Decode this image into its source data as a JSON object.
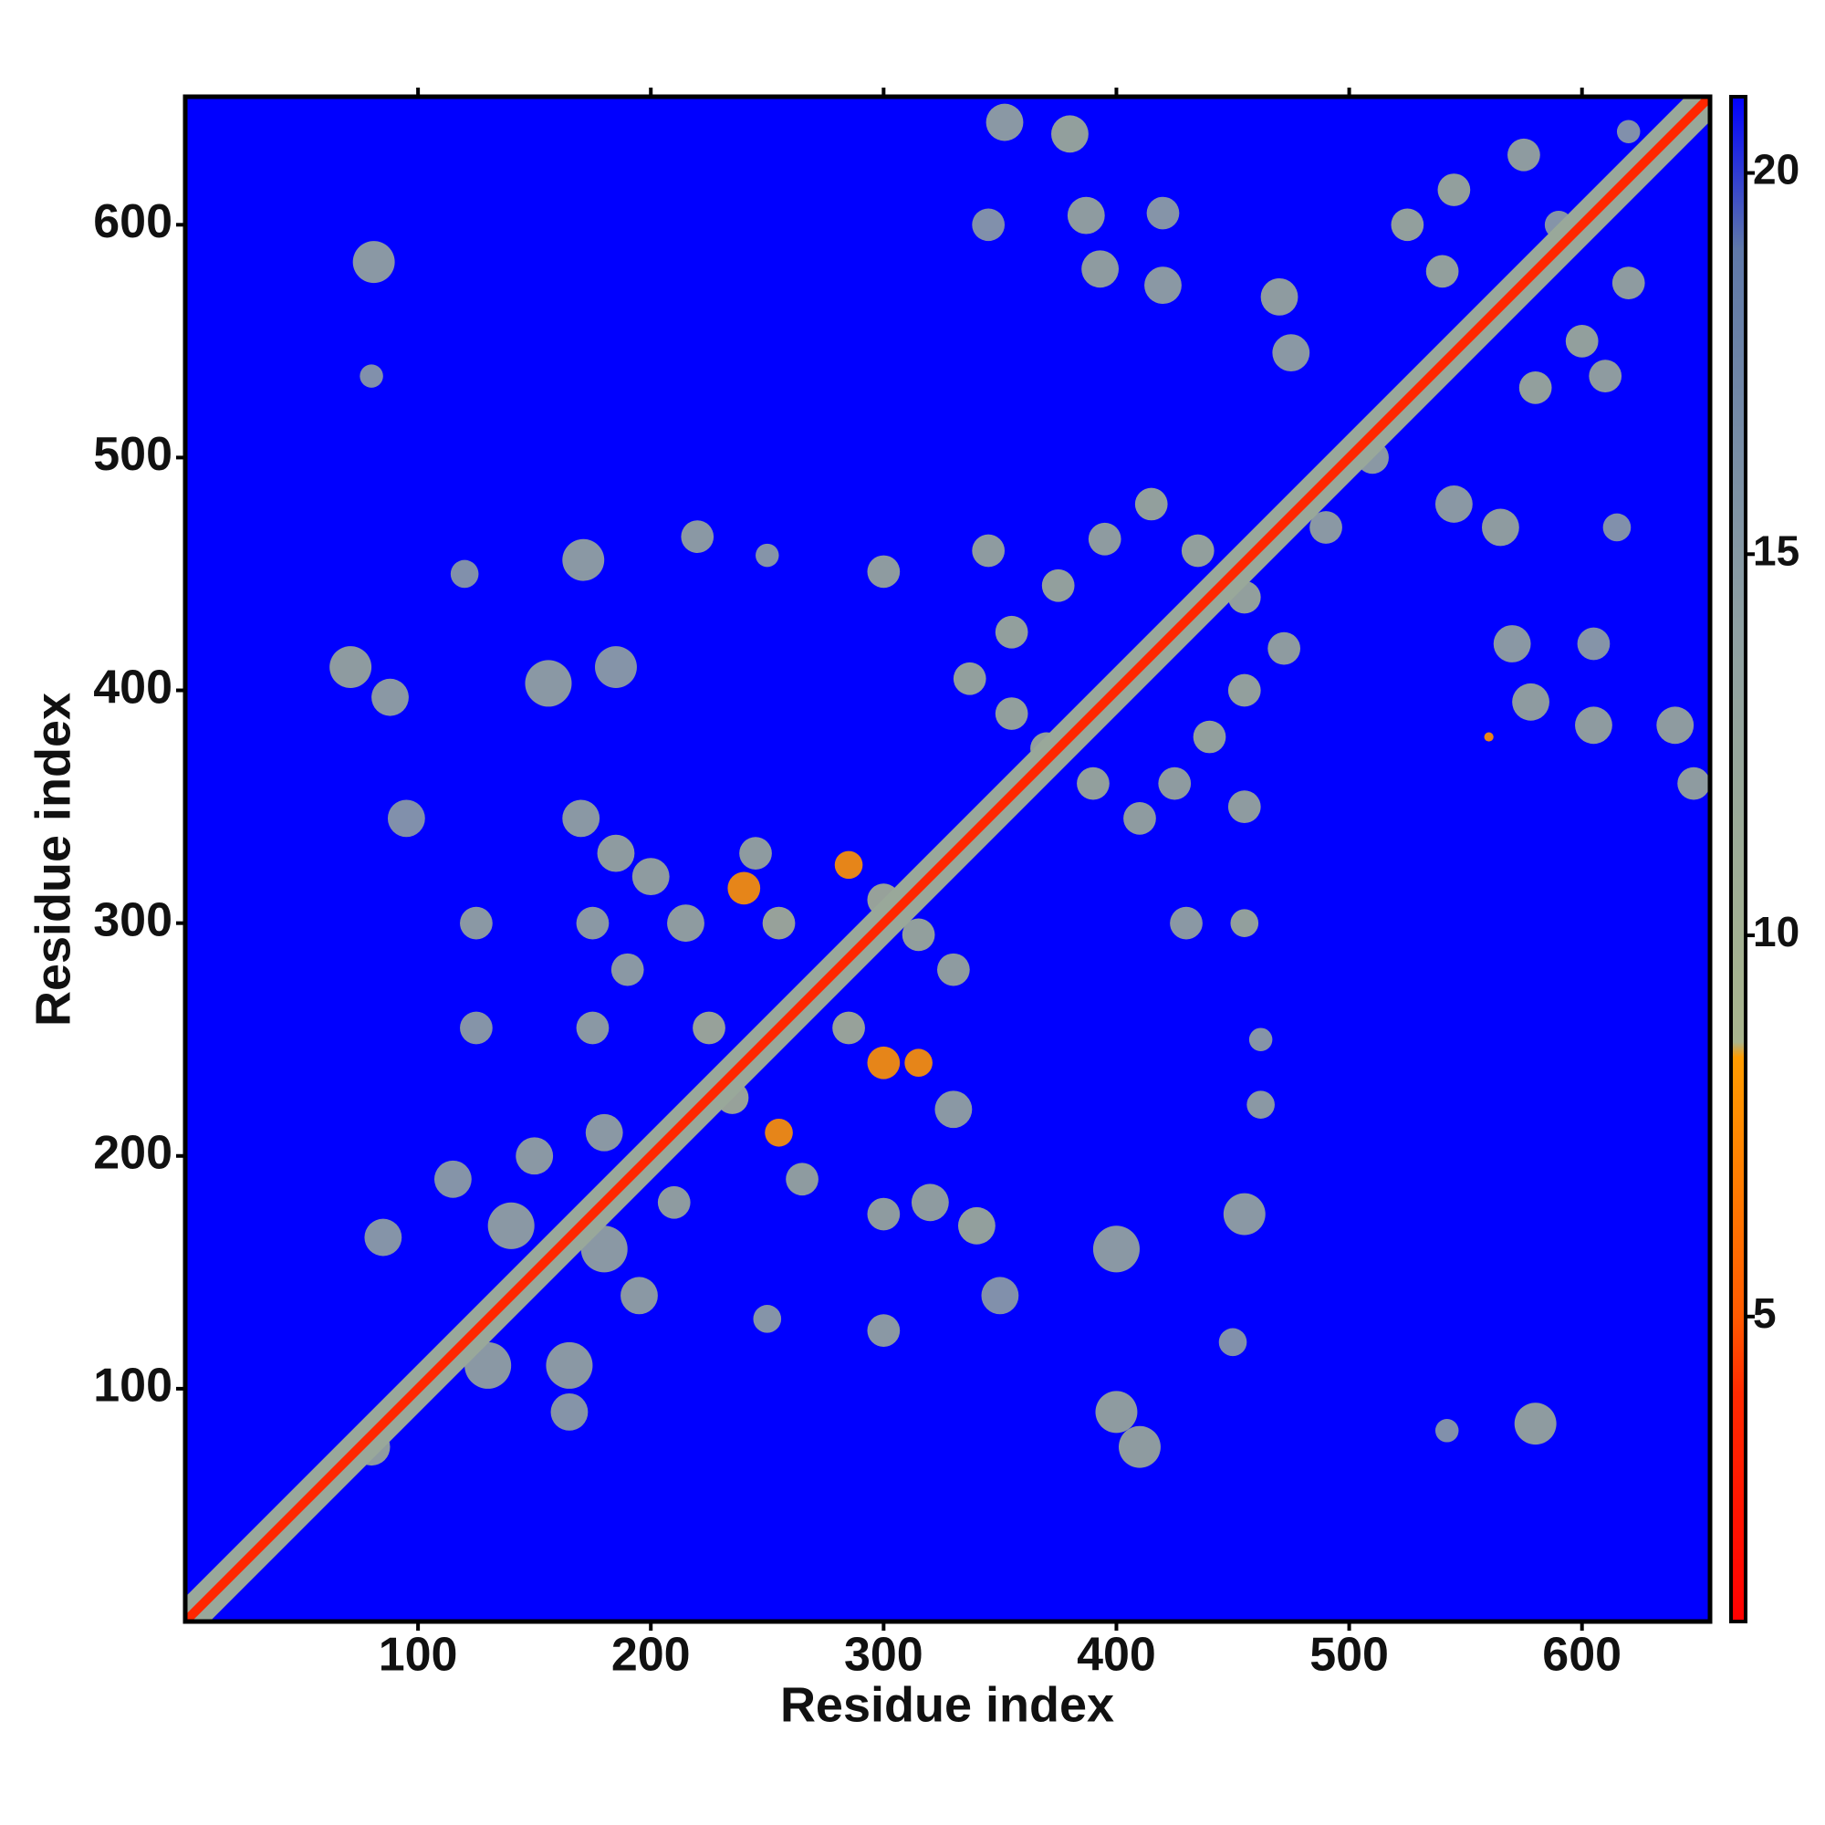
{
  "chart_data": {
    "type": "heatmap",
    "xlabel": "Residue index",
    "ylabel": "Residue index",
    "xlim": [
      0,
      655
    ],
    "ylim": [
      0,
      655
    ],
    "xticks": [
      100,
      200,
      300,
      400,
      500,
      600
    ],
    "yticks": [
      100,
      200,
      300,
      400,
      500,
      600
    ],
    "clim": [
      1,
      21
    ],
    "cticks": [
      5,
      10,
      15,
      20
    ],
    "background_color": "#0000ff",
    "colorscale": [
      [
        1,
        "#ff0000"
      ],
      [
        4,
        "#ff2a00"
      ],
      [
        5,
        "#ff5a00"
      ],
      [
        8.4,
        "#ff9c00"
      ],
      [
        8.6,
        "#a9b58d"
      ],
      [
        14,
        "#8fa0a2"
      ],
      [
        19,
        "#5f78a8"
      ],
      [
        21,
        "#0000ff"
      ]
    ],
    "diagonal": {
      "x": [
        1,
        655
      ],
      "y": [
        1,
        655
      ],
      "value": 3.8
    },
    "contacts": {
      "x": [
        80,
        130,
        165,
        165,
        140,
        180,
        85,
        115,
        150,
        195,
        170,
        185,
        200,
        125,
        175,
        125,
        175,
        95,
        190,
        180,
        240,
        255,
        285,
        300,
        315,
        285,
        300,
        315,
        225,
        235,
        255,
        330,
        215,
        245,
        320,
        340,
        300,
        265,
        330,
        210,
        337,
        355,
        375,
        395,
        415,
        435,
        455,
        472,
        455,
        440,
        425,
        410,
        390,
        370,
        355,
        455,
        345,
        525,
        545,
        575,
        600,
        620,
        600,
        580,
        555,
        540,
        610,
        530,
        81,
        80,
        71,
        88,
        171,
        156,
        185,
        220,
        250,
        300,
        120,
        352,
        380,
        387,
        393,
        420,
        420,
        470,
        475,
        345,
        400,
        410,
        580,
        400,
        455,
        462,
        462,
        430,
        455,
        300,
        250,
        350,
        570,
        605,
        578,
        605,
        640,
        648,
        565,
        545,
        615,
        560,
        542,
        450,
        590,
        620,
        510,
        490
      ],
      "y": [
        75,
        110,
        110,
        90,
        170,
        160,
        165,
        190,
        200,
        140,
        345,
        330,
        320,
        300,
        300,
        255,
        255,
        345,
        280,
        210,
        315,
        300,
        255,
        240,
        240,
        325,
        310,
        295,
        255,
        225,
        210,
        280,
        300,
        330,
        180,
        170,
        175,
        190,
        220,
        180,
        405,
        425,
        445,
        465,
        480,
        460,
        440,
        418,
        400,
        380,
        360,
        345,
        360,
        375,
        390,
        350,
        460,
        600,
        615,
        630,
        600,
        575,
        550,
        530,
        555,
        580,
        535,
        530,
        584,
        535,
        410,
        397,
        456,
        403,
        410,
        466,
        458,
        451,
        450,
        644,
        639,
        604,
        581,
        574,
        605,
        569,
        545,
        600,
        90,
        75,
        85,
        160,
        175,
        222,
        250,
        300,
        300,
        125,
        130,
        140,
        420,
        420,
        395,
        385,
        385,
        360,
        470,
        480,
        470,
        380,
        82,
        120,
        600,
        640,
        500,
        470
      ],
      "values": [
        11,
        12,
        12,
        13,
        12,
        12,
        13,
        13,
        12,
        12,
        12,
        11,
        11,
        12,
        12,
        13,
        12,
        14,
        12,
        12,
        8,
        9,
        9,
        8,
        8,
        8,
        9,
        10,
        9,
        9,
        8,
        11,
        11,
        11,
        11,
        10,
        11,
        11,
        12,
        11,
        10,
        10,
        10,
        11,
        10,
        10,
        10,
        11,
        10,
        10,
        11,
        11,
        10,
        10,
        10,
        11,
        11,
        10,
        10,
        11,
        10,
        11,
        10,
        10,
        10,
        10,
        11,
        11,
        12,
        14,
        11,
        12,
        12,
        12,
        13,
        12,
        13,
        11,
        14,
        12,
        10,
        11,
        11,
        12,
        13,
        11,
        12,
        14,
        11,
        11,
        11,
        12,
        12,
        12,
        13,
        12,
        10,
        12,
        13,
        14,
        12,
        13,
        11,
        11,
        11,
        11,
        11,
        12,
        14,
        8,
        14,
        14,
        13,
        14,
        12,
        12
      ],
      "sizes": [
        8,
        10,
        10,
        8,
        10,
        10,
        8,
        8,
        8,
        8,
        8,
        8,
        8,
        7,
        7,
        7,
        7,
        8,
        7,
        8,
        7,
        7,
        7,
        7,
        6,
        6,
        7,
        7,
        7,
        7,
        6,
        7,
        8,
        7,
        8,
        8,
        7,
        7,
        8,
        7,
        7,
        7,
        7,
        7,
        7,
        7,
        7,
        7,
        7,
        7,
        7,
        7,
        7,
        7,
        7,
        7,
        7,
        7,
        7,
        7,
        7,
        7,
        7,
        7,
        7,
        7,
        7,
        7,
        9,
        5,
        9,
        8,
        9,
        10,
        9,
        7,
        5,
        7,
        6,
        8,
        8,
        8,
        8,
        8,
        7,
        8,
        8,
        7,
        9,
        9,
        9,
        10,
        9,
        6,
        5,
        7,
        6,
        7,
        6,
        8,
        8,
        7,
        8,
        8,
        8,
        7,
        8,
        8,
        6,
        2,
        5,
        6,
        6,
        5,
        7,
        7
      ]
    }
  }
}
